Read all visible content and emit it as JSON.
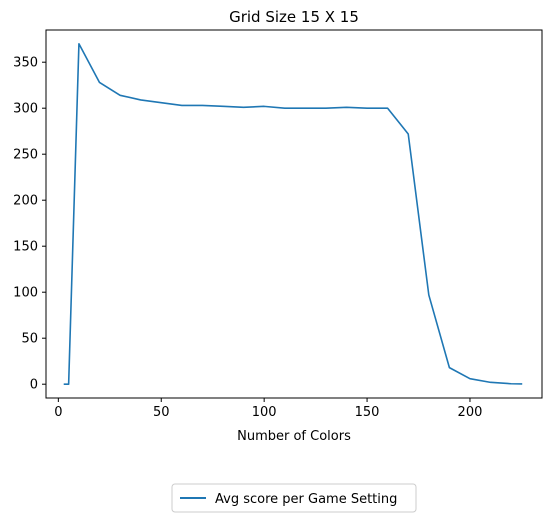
{
  "chart_data": {
    "type": "line",
    "title": "Grid Size 15 X 15",
    "xlabel": "Number of Colors",
    "ylabel": "",
    "xlim": [
      -6,
      235
    ],
    "ylim": [
      -15,
      385
    ],
    "xticks": [
      0,
      50,
      100,
      150,
      200
    ],
    "yticks": [
      0,
      50,
      100,
      150,
      200,
      250,
      300,
      350
    ],
    "grid": false,
    "legend_position": "bottom-center",
    "series": [
      {
        "name": "Avg score per Game Setting",
        "color": "#1f77b4",
        "x": [
          3,
          5,
          10,
          20,
          30,
          40,
          50,
          60,
          70,
          80,
          90,
          100,
          110,
          120,
          130,
          140,
          150,
          160,
          170,
          180,
          190,
          200,
          210,
          220,
          225
        ],
        "y": [
          0,
          0,
          370,
          328,
          314,
          309,
          306,
          303,
          303,
          302,
          301,
          302,
          300,
          300,
          300,
          301,
          300,
          300,
          272,
          97,
          18,
          6,
          2,
          0.5,
          0.3
        ]
      }
    ]
  }
}
